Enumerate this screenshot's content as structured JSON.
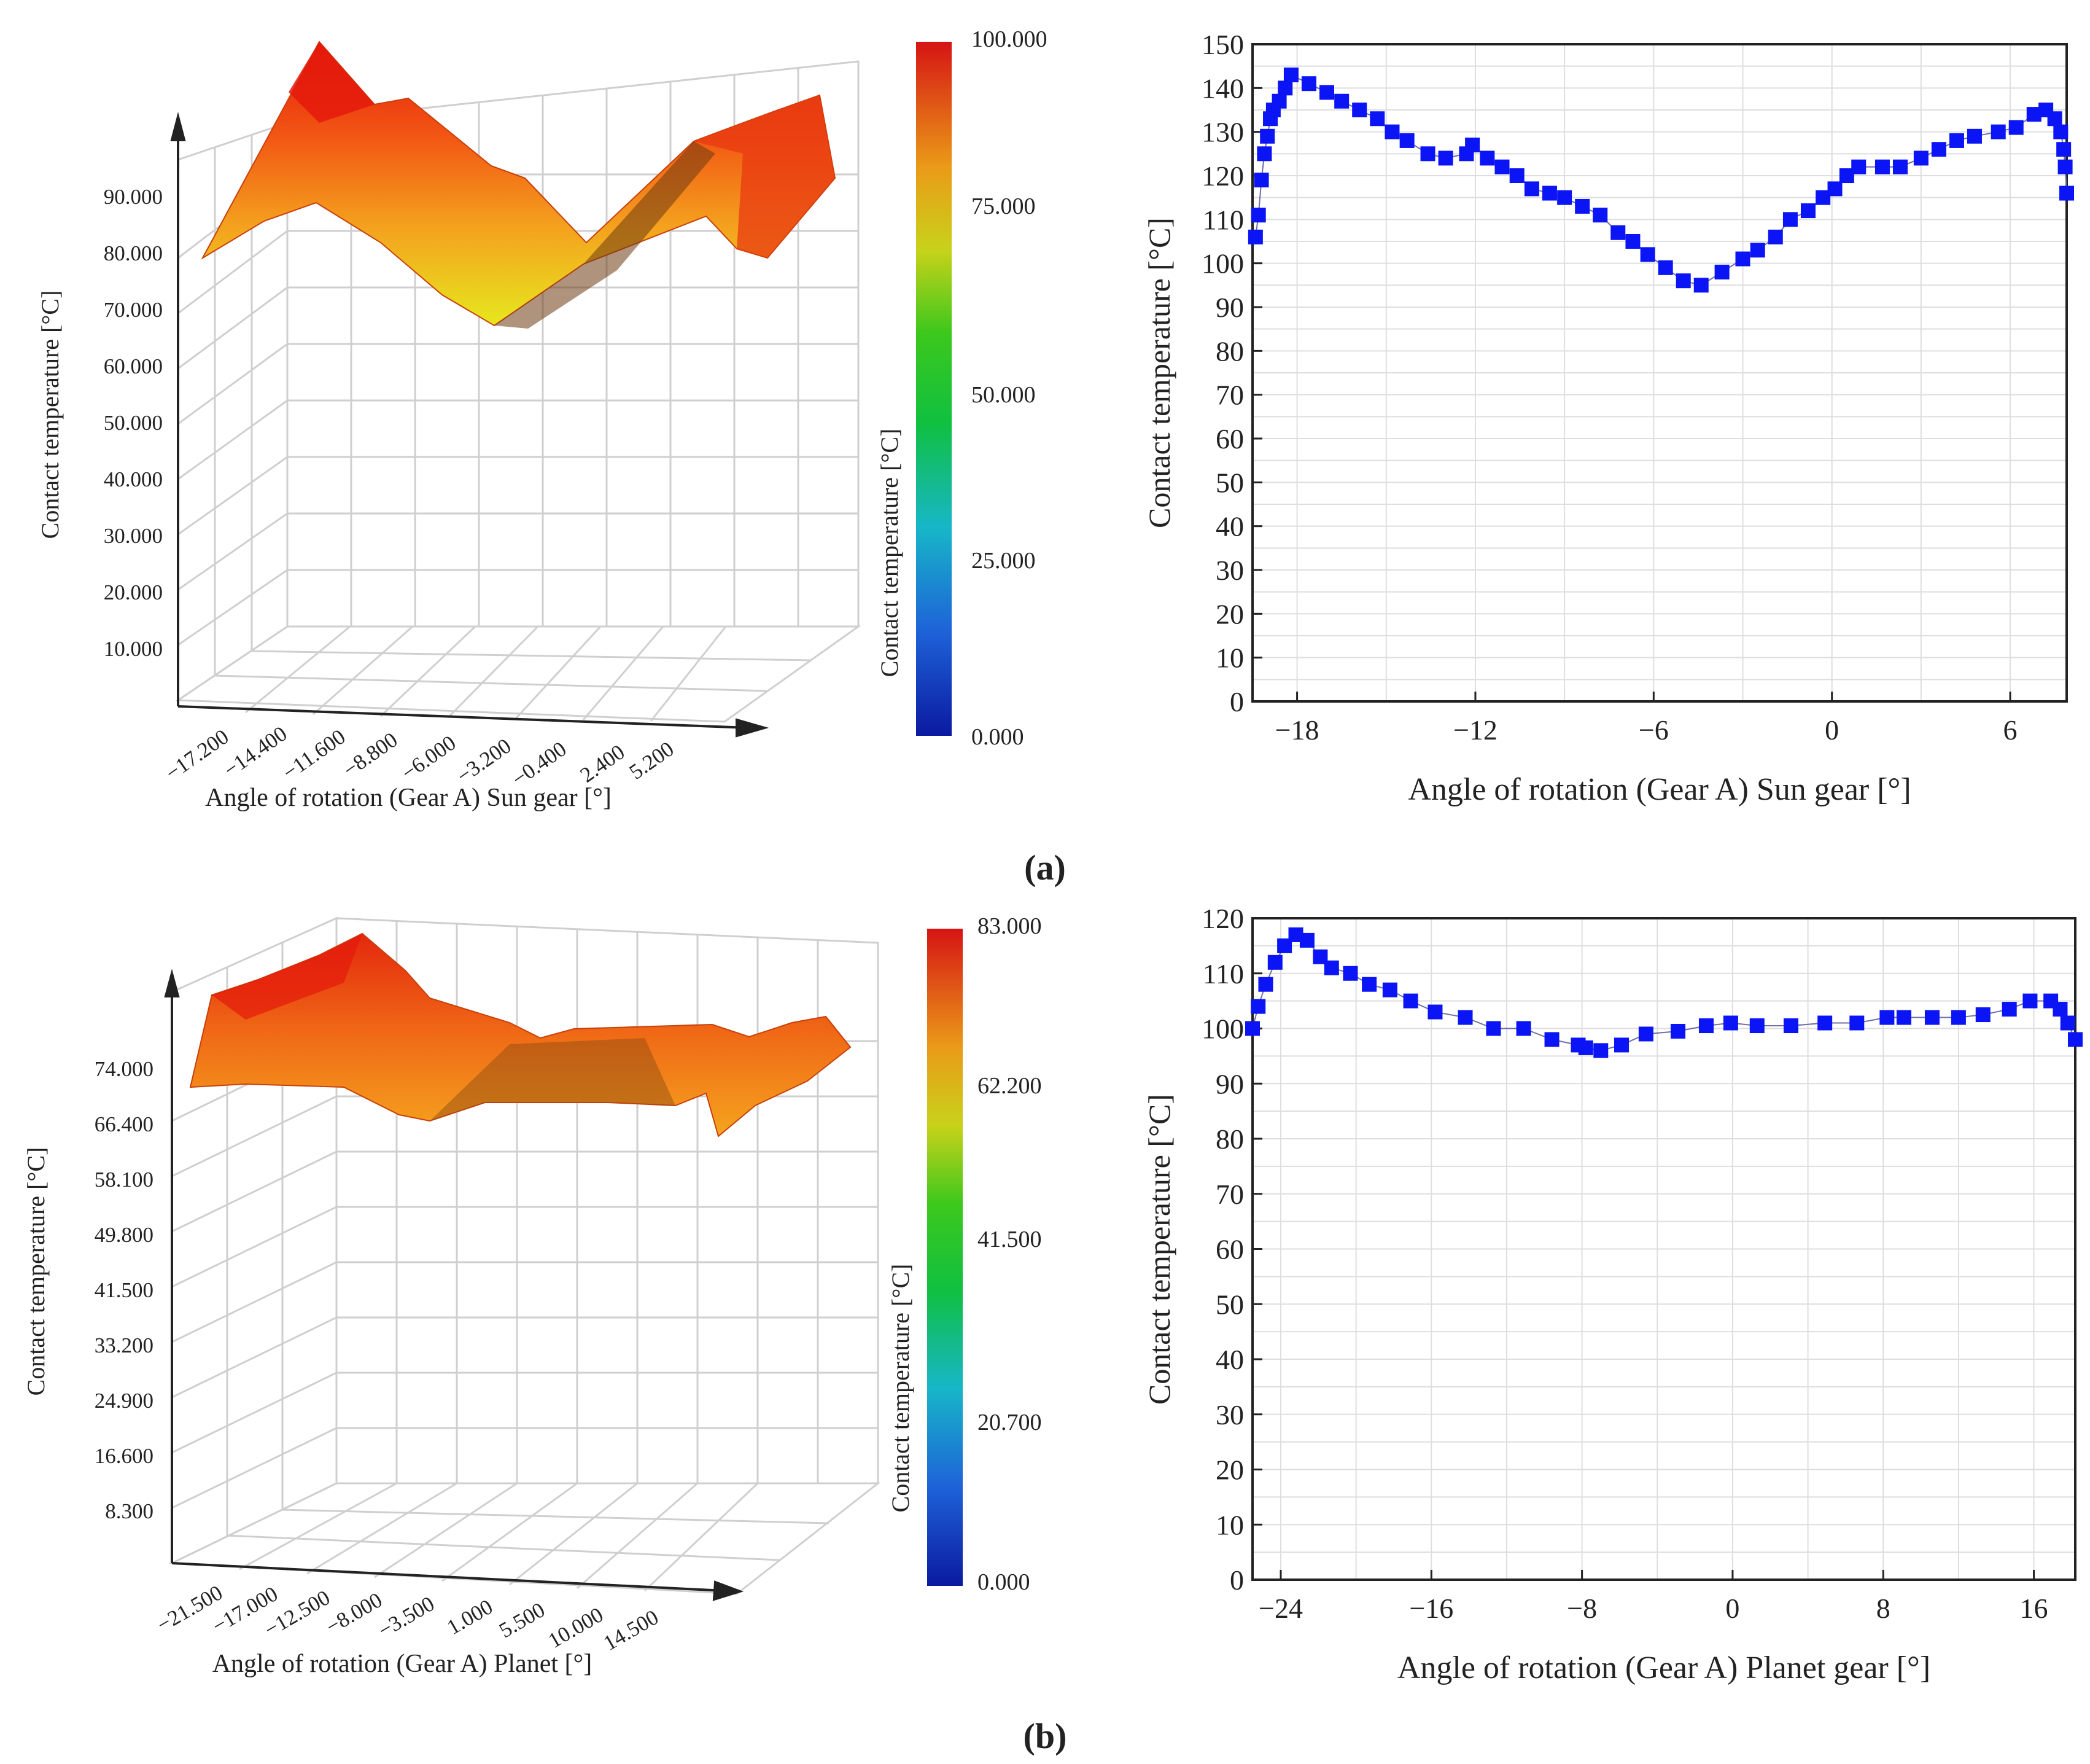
{
  "figure": {
    "panel_labels": [
      "(a)",
      "(b)"
    ]
  },
  "chart_data": [
    {
      "id": "a3d",
      "type": "surface3d",
      "zlabel": "Contact temperature [°C]",
      "xlabel": "Angle of rotation (Gear A) Sun gear [°]",
      "z_ticks": [
        "10.000",
        "20.000",
        "30.000",
        "40.000",
        "50.000",
        "60.000",
        "70.000",
        "80.000",
        "90.000"
      ],
      "x_ticks": [
        "−17.200",
        "−14.400",
        "−11.600",
        "−8.800",
        "−6.000",
        "−3.200",
        "−0.400",
        "2.400",
        "5.200"
      ],
      "colorbar": {
        "label": "Contact temperature [°C]",
        "ticks": [
          "100.000",
          "75.000",
          "50.000",
          "25.000",
          "0.000"
        ],
        "range": [
          0,
          100
        ]
      }
    },
    {
      "id": "a2d",
      "type": "scatter",
      "xlabel": "Angle of rotation (Gear A) Sun gear [°]",
      "ylabel": "Contact temperature [°C]",
      "xlim": [
        -19.5,
        7.9
      ],
      "ylim": [
        0,
        150
      ],
      "xticks": [
        -18,
        -12,
        -6,
        0,
        6
      ],
      "xtick_labels": [
        "−18",
        "−12",
        "−6",
        "0",
        "6"
      ],
      "yticks": [
        0,
        10,
        20,
        30,
        40,
        50,
        60,
        70,
        80,
        90,
        100,
        110,
        120,
        130,
        140,
        150
      ],
      "marker_color": "#0a14f5",
      "points": [
        [
          -19.4,
          106
        ],
        [
          -19.3,
          111
        ],
        [
          -19.2,
          119
        ],
        [
          -19.1,
          125
        ],
        [
          -19.0,
          129
        ],
        [
          -18.9,
          133
        ],
        [
          -18.8,
          135
        ],
        [
          -18.6,
          137
        ],
        [
          -18.4,
          140
        ],
        [
          -18.2,
          143
        ],
        [
          -17.6,
          141
        ],
        [
          -17.0,
          139
        ],
        [
          -16.5,
          137
        ],
        [
          -15.9,
          135
        ],
        [
          -15.3,
          133
        ],
        [
          -14.8,
          130
        ],
        [
          -14.3,
          128
        ],
        [
          -13.6,
          125
        ],
        [
          -13.0,
          124
        ],
        [
          -12.3,
          125
        ],
        [
          -12.1,
          127
        ],
        [
          -11.6,
          124
        ],
        [
          -11.1,
          122
        ],
        [
          -10.6,
          120
        ],
        [
          -10.1,
          117
        ],
        [
          -9.5,
          116
        ],
        [
          -9.0,
          115
        ],
        [
          -8.4,
          113
        ],
        [
          -7.8,
          111
        ],
        [
          -7.2,
          107
        ],
        [
          -6.7,
          105
        ],
        [
          -6.2,
          102
        ],
        [
          -5.6,
          99
        ],
        [
          -5.0,
          96
        ],
        [
          -4.4,
          95
        ],
        [
          -3.7,
          98
        ],
        [
          -3.0,
          101
        ],
        [
          -2.5,
          103
        ],
        [
          -1.9,
          106
        ],
        [
          -1.4,
          110
        ],
        [
          -0.8,
          112
        ],
        [
          -0.3,
          115
        ],
        [
          0.1,
          117
        ],
        [
          0.5,
          120
        ],
        [
          0.9,
          122
        ],
        [
          1.7,
          122
        ],
        [
          2.3,
          122
        ],
        [
          3.0,
          124
        ],
        [
          3.6,
          126
        ],
        [
          4.2,
          128
        ],
        [
          4.8,
          129
        ],
        [
          5.6,
          130
        ],
        [
          6.2,
          131
        ],
        [
          6.8,
          134
        ],
        [
          7.2,
          135
        ],
        [
          7.5,
          133
        ],
        [
          7.7,
          130
        ],
        [
          7.8,
          126
        ],
        [
          7.85,
          122
        ],
        [
          7.9,
          116
        ]
      ]
    },
    {
      "id": "b3d",
      "type": "surface3d",
      "zlabel": "Contact temperature [°C]",
      "xlabel": "Angle of rotation (Gear A) Planet  [°]",
      "z_ticks": [
        "8.300",
        "16.600",
        "24.900",
        "33.200",
        "41.500",
        "49.800",
        "58.100",
        "66.400",
        "74.000"
      ],
      "x_ticks": [
        "−21.500",
        "−17.000",
        "−12.500",
        "−8.000",
        "−3.500",
        "1.000",
        "5.500",
        "10.000",
        "14.500"
      ],
      "colorbar": {
        "label": "Contact temperature [°C]",
        "ticks": [
          "83.000",
          "62.200",
          "41.500",
          "20.700",
          "0.000"
        ],
        "range": [
          0,
          83
        ]
      }
    },
    {
      "id": "b2d",
      "type": "scatter",
      "xlabel": "Angle of rotation (Gear A) Planet gear [°]",
      "ylabel": "Contact temperature [°C]",
      "xlim": [
        -25.5,
        18.2
      ],
      "ylim": [
        0,
        120
      ],
      "xticks": [
        -24,
        -16,
        -8,
        0,
        8,
        16
      ],
      "xtick_labels": [
        "−24",
        "−16",
        "−8",
        "0",
        "8",
        "16"
      ],
      "yticks": [
        0,
        10,
        20,
        30,
        40,
        50,
        60,
        70,
        80,
        90,
        100,
        110,
        120
      ],
      "marker_color": "#0a14f5",
      "points": [
        [
          -25.5,
          100
        ],
        [
          -25.2,
          104
        ],
        [
          -24.8,
          108
        ],
        [
          -24.3,
          112
        ],
        [
          -23.8,
          115
        ],
        [
          -23.2,
          117
        ],
        [
          -22.6,
          116
        ],
        [
          -21.9,
          113
        ],
        [
          -21.3,
          111
        ],
        [
          -20.3,
          110
        ],
        [
          -19.3,
          108
        ],
        [
          -18.2,
          107
        ],
        [
          -17.1,
          105
        ],
        [
          -15.8,
          103
        ],
        [
          -14.2,
          102
        ],
        [
          -12.7,
          100
        ],
        [
          -11.1,
          100
        ],
        [
          -9.6,
          98
        ],
        [
          -8.2,
          97
        ],
        [
          -7.8,
          96.5
        ],
        [
          -7.0,
          96
        ],
        [
          -5.9,
          97
        ],
        [
          -4.6,
          99
        ],
        [
          -2.9,
          99.5
        ],
        [
          -1.4,
          100.5
        ],
        [
          -0.1,
          101
        ],
        [
          1.3,
          100.5
        ],
        [
          3.1,
          100.5
        ],
        [
          4.9,
          101
        ],
        [
          6.6,
          101
        ],
        [
          8.2,
          102
        ],
        [
          9.1,
          102
        ],
        [
          10.6,
          102
        ],
        [
          12.0,
          102
        ],
        [
          13.3,
          102.5
        ],
        [
          14.7,
          103.5
        ],
        [
          15.8,
          105
        ],
        [
          16.9,
          105
        ],
        [
          17.4,
          103.5
        ],
        [
          17.8,
          101
        ],
        [
          18.2,
          98
        ]
      ]
    }
  ]
}
